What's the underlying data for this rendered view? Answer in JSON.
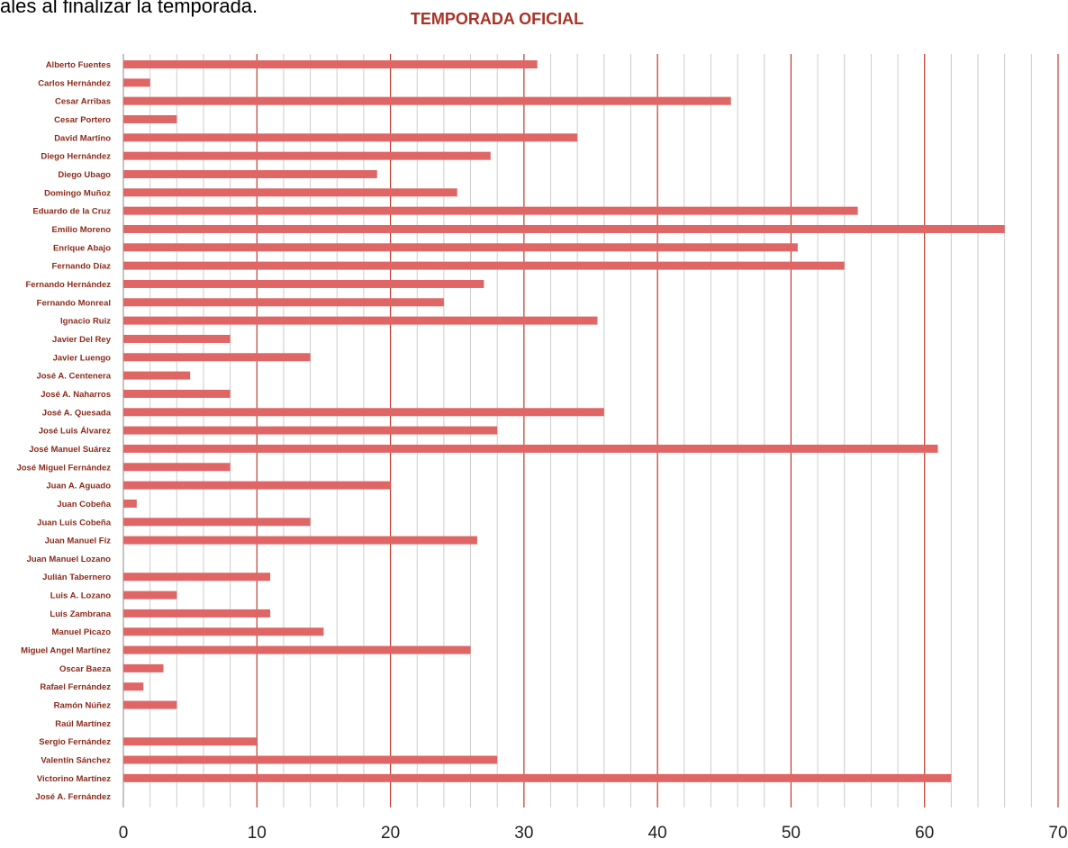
{
  "page": {
    "intro_text": "ales al finalizar la temporada."
  },
  "colors": {
    "bar": "#e06666",
    "title": "#a93226",
    "major_grid": "#c0392b",
    "minor_grid": "#cccccc",
    "label": "#8b2a1a",
    "tick": "#222222"
  },
  "chart_data": {
    "type": "bar",
    "orientation": "horizontal",
    "title": "TEMPORADA OFICIAL",
    "xlim": [
      0,
      70
    ],
    "major_ticks": [
      0,
      10,
      20,
      30,
      40,
      50,
      60,
      70
    ],
    "minor_step": 2,
    "grid": true,
    "legend": "none",
    "categories": [
      "Alberto Fuentes",
      "Carlos Hernández",
      "Cesar Arribas",
      "Cesar Portero",
      "David Martino",
      "Diego Hernández",
      "Diego Ubago",
      "Domingo Muñoz",
      "Eduardo de la Cruz",
      "Emilio Moreno",
      "Enrique Abajo",
      "Fernando Díaz",
      "Fernando Hernández",
      "Fernando Monreal",
      "Ignacio Ruiz",
      "Javier Del Rey",
      "Javier Luengo",
      "José A. Centenera",
      "José A. Naharros",
      "José A. Quesada",
      "José Luis Álvarez",
      "José Manuel Suárez",
      "José Miguel Fernández",
      "Juan A. Aguado",
      "Juan Cobeña",
      "Juan Luis Cobeña",
      "Juan Manuel Fíz",
      "Juan Manuel Lozano",
      "Julián Tabernero",
      "Luis A. Lozano",
      "Luis Zambrana",
      "Manuel Picazo",
      "Miguel Angel Martínez",
      "Oscar Baeza",
      "Rafael Fernández",
      "Ramón Núñez",
      "Raúl Martínez",
      "Sergio Fernández",
      "Valentín Sánchez",
      "Victorino Martínez",
      "José A. Fernández"
    ],
    "values": [
      31,
      2,
      45.5,
      4,
      34,
      27.5,
      19,
      25,
      55,
      66,
      50.5,
      54,
      27,
      24,
      35.5,
      8,
      14,
      5,
      8,
      36,
      28,
      61,
      8,
      20,
      1,
      14,
      26.5,
      0,
      11,
      4,
      11,
      15,
      26,
      3,
      1.5,
      4,
      0,
      10,
      28,
      62,
      0
    ]
  }
}
